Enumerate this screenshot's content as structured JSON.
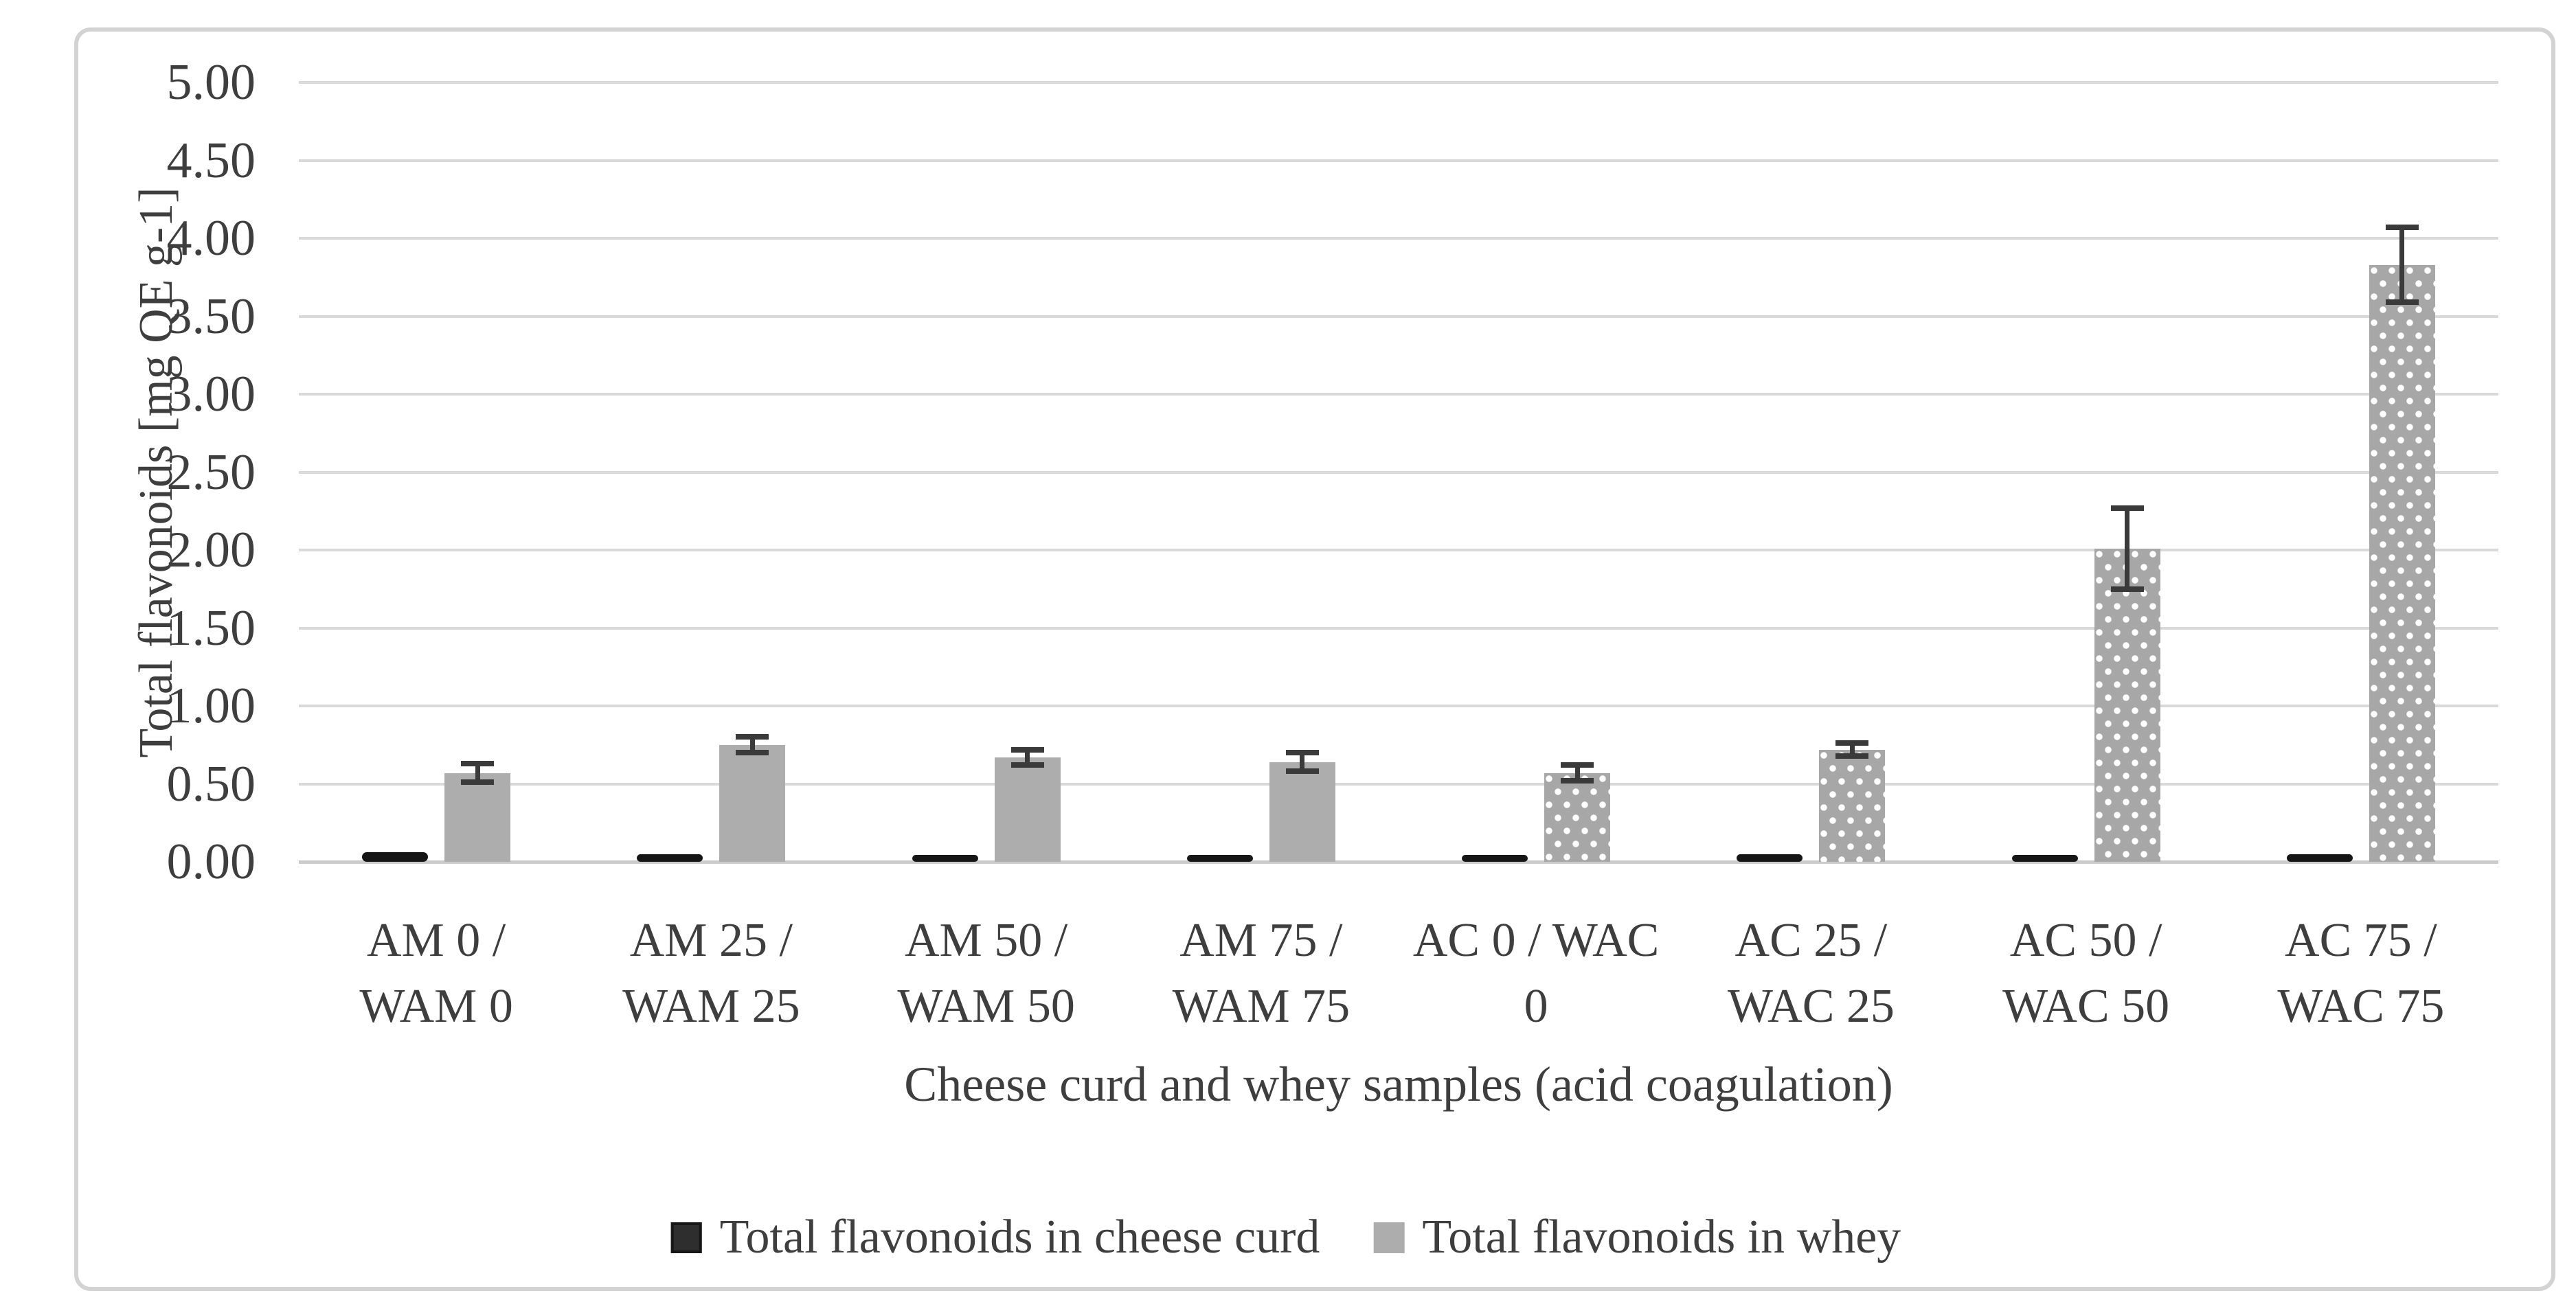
{
  "figure": {
    "background": "#ffffff",
    "frame_border_color": "#d3d3d3"
  },
  "colors": {
    "curd_bar": "#161616",
    "whey_bar_solid": "#adadad",
    "whey_bar_dotted_bg": "#a7a7a7",
    "whey_bar_dot": "#ffffff",
    "error_bar": "#3a3a3a",
    "gridline": "#d9d9d9",
    "axis_line": "#cccccc",
    "text": "#3e3e3e"
  },
  "chart_data": {
    "type": "bar",
    "title": "",
    "xlabel": "Cheese curd and whey samples (acid coagulation)",
    "ylabel": "Total flavonoids [mg QE g-1]",
    "ylim": [
      0,
      5
    ],
    "ytick_step": 0.5,
    "grid": true,
    "legend_position": "bottom",
    "yticks": [
      {
        "v": 0.0,
        "label": "0.00"
      },
      {
        "v": 0.5,
        "label": "0.50"
      },
      {
        "v": 1.0,
        "label": "1.00"
      },
      {
        "v": 1.5,
        "label": "1.50"
      },
      {
        "v": 2.0,
        "label": "2.00"
      },
      {
        "v": 2.5,
        "label": "2.50"
      },
      {
        "v": 3.0,
        "label": "3.00"
      },
      {
        "v": 3.5,
        "label": "3.50"
      },
      {
        "v": 4.0,
        "label": "4.00"
      },
      {
        "v": 4.5,
        "label": "4.50"
      },
      {
        "v": 5.0,
        "label": "5.00"
      }
    ],
    "categories": [
      "AM 0 / WAM 0",
      "AM 25 / WAM 25",
      "AM 50 / WAM 50",
      "AM 75 / WAM 75",
      "AC 0 / WAC 0",
      "AC 25 / WAC 25",
      "AC 50 / WAC 50",
      "AC 75 / WAC 75"
    ],
    "category_lines": [
      [
        "AM 0 /",
        "WAM 0"
      ],
      [
        "AM 25 /",
        "WAM 25"
      ],
      [
        "AM 50 /",
        "WAM 50"
      ],
      [
        "AM 75 /",
        "WAM 75"
      ],
      [
        "AC 0 / WAC",
        "0"
      ],
      [
        "AC 25 /",
        "WAC 25"
      ],
      [
        "AC 50 /",
        "WAC 50"
      ],
      [
        "AC 75 /",
        "WAC 75"
      ]
    ],
    "series": [
      {
        "name": "Total flavonoids in cheese curd",
        "color": "#161616",
        "pattern": "solid",
        "values": [
          0.06,
          0.05,
          0.04,
          0.04,
          0.04,
          0.05,
          0.04,
          0.05
        ]
      },
      {
        "name": "Total flavonoids in whey",
        "color": "#adadad",
        "patterns": [
          "solid",
          "solid",
          "solid",
          "solid",
          "dotted",
          "dotted",
          "dotted",
          "dotted"
        ],
        "values": [
          0.57,
          0.75,
          0.67,
          0.64,
          0.57,
          0.72,
          2.01,
          3.83
        ],
        "errors": [
          0.06,
          0.05,
          0.05,
          0.06,
          0.05,
          0.04,
          0.26,
          0.24
        ]
      }
    ]
  }
}
